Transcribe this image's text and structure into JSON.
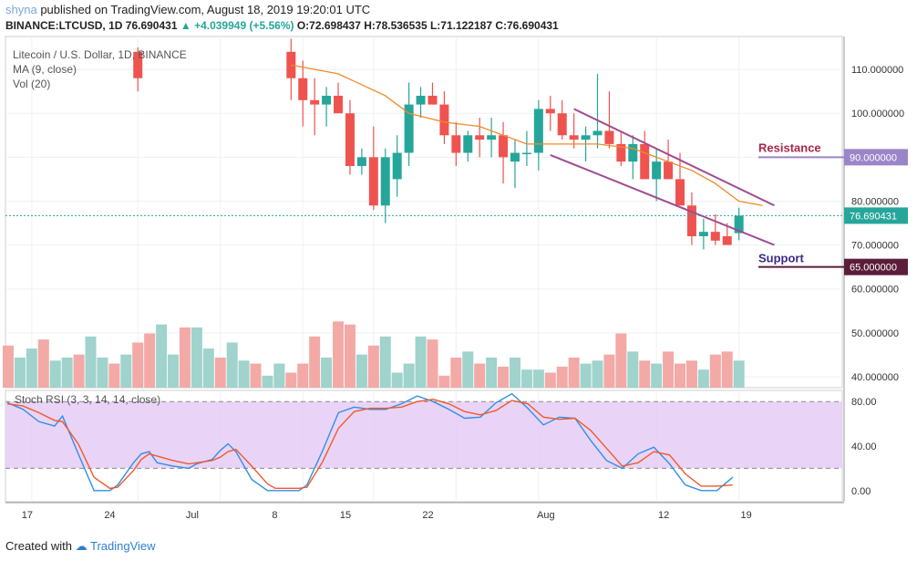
{
  "header": {
    "user": "shyna",
    "published": "published on TradingView.com, August 18, 2019 19:20:01 UTC",
    "symbol_line": "BINANCE:LTCUSD, 1D 76.690431",
    "change": "▲ +4.039949 (+5.56%)",
    "ohlc": "O:72.698437 H:78.536535 L:71.122187 C:76.690431"
  },
  "legend": {
    "title": "Litecoin / U.S. Dollar, 1D, BINANCE",
    "ma": "MA (9, close)",
    "vol": "Vol (20)",
    "stoch": "Stoch RSI (3, 3, 14, 14, close)"
  },
  "footer": {
    "created": "Created with",
    "brand": "TradingView"
  },
  "annotations": {
    "resistance": "Resistance",
    "support": "Support"
  },
  "colors": {
    "up": "#26a69a",
    "down": "#ef5350",
    "ma": "#ef8a2a",
    "channel": "#a04c8f",
    "resistance": "#9b85c9",
    "support": "#5b1d3a",
    "stoch_k": "#2f8fe6",
    "stoch_d": "#ef5a2a",
    "stoch_band": "#e3c9f5"
  },
  "chart_data": {
    "type": "candlestick",
    "symbol": "BINANCE:LTCUSD",
    "price_axis": {
      "ylim": [
        37.5,
        117.5
      ],
      "ticks": [
        "110.000000",
        "100.000000",
        "90.000000",
        "80.000000",
        "70.000000",
        "60.000000",
        "50.000000",
        "40.000000"
      ]
    },
    "x_tick_labels": [
      "17",
      "24",
      "Jul",
      "8",
      "15",
      "22",
      "Aug",
      "12",
      "19"
    ],
    "price_labels": {
      "last": "76.690431",
      "resistance": "90.000000",
      "support": "65.000000"
    },
    "levels": {
      "resistance": 90,
      "support": 65,
      "last": 76.69
    },
    "candles": [
      [
        null,
        null,
        null,
        null
      ],
      [
        null,
        null,
        null,
        null
      ],
      [
        null,
        null,
        null,
        null
      ],
      [
        null,
        null,
        null,
        null
      ],
      [
        null,
        null,
        null,
        null
      ],
      [
        null,
        null,
        null,
        null
      ],
      [
        null,
        null,
        null,
        null
      ],
      [
        null,
        null,
        null,
        null
      ],
      [
        null,
        null,
        null,
        null
      ],
      [
        null,
        null,
        null,
        null
      ],
      [
        null,
        null,
        null,
        null
      ],
      [
        114,
        115,
        105,
        108
      ],
      [
        null,
        null,
        null,
        null
      ],
      [
        null,
        null,
        null,
        null
      ],
      [
        null,
        null,
        null,
        null
      ],
      [
        null,
        null,
        null,
        null
      ],
      [
        null,
        null,
        null,
        null
      ],
      [
        null,
        null,
        null,
        null
      ],
      [
        null,
        null,
        null,
        null
      ],
      [
        null,
        null,
        null,
        null
      ],
      [
        null,
        null,
        null,
        null
      ],
      [
        null,
        null,
        null,
        null
      ],
      [
        null,
        null,
        null,
        null
      ],
      [
        null,
        null,
        null,
        null
      ],
      [
        114,
        117,
        103,
        108
      ],
      [
        108,
        112,
        97,
        103
      ],
      [
        103,
        108,
        95,
        102
      ],
      [
        102,
        106,
        97,
        104
      ],
      [
        104,
        107,
        101,
        100
      ],
      [
        100,
        103,
        86,
        88
      ],
      [
        88,
        92,
        86,
        90
      ],
      [
        90,
        97,
        78,
        79
      ],
      [
        79,
        92,
        75,
        90
      ],
      [
        85,
        95,
        81,
        91
      ],
      [
        91,
        107,
        88,
        102
      ],
      [
        102,
        106,
        99,
        104
      ],
      [
        104,
        107,
        102,
        102
      ],
      [
        102,
        105,
        93,
        95
      ],
      [
        95,
        98,
        88,
        91
      ],
      [
        91,
        96,
        89,
        95
      ],
      [
        95,
        99,
        90,
        94
      ],
      [
        94,
        99,
        90,
        95
      ],
      [
        95,
        98,
        84,
        90
      ],
      [
        89,
        94,
        83,
        91
      ],
      [
        91,
        96,
        88,
        91
      ],
      [
        91,
        103,
        87,
        101
      ],
      [
        101,
        104,
        96,
        100
      ],
      [
        100,
        103,
        94,
        95
      ],
      [
        95,
        100,
        92,
        94
      ],
      [
        94,
        97,
        89,
        95
      ],
      [
        95,
        109,
        92,
        96
      ],
      [
        96,
        105,
        92,
        93
      ],
      [
        93,
        96,
        88,
        89
      ],
      [
        89,
        95,
        85,
        93
      ],
      [
        93,
        96,
        87,
        85
      ],
      [
        85,
        92,
        80,
        89
      ],
      [
        89,
        94,
        85,
        85
      ],
      [
        85,
        91,
        82,
        79
      ],
      [
        79,
        82,
        70,
        72
      ],
      [
        72,
        76,
        69,
        73
      ],
      [
        73,
        77,
        70,
        71
      ],
      [
        72,
        75,
        70,
        70
      ],
      [
        72.7,
        78.5,
        71.1,
        76.7
      ]
    ],
    "ma9": [
      [
        24,
        111
      ],
      [
        28,
        109
      ],
      [
        32,
        104
      ],
      [
        34,
        100
      ],
      [
        37,
        98
      ],
      [
        40,
        97
      ],
      [
        44,
        93
      ],
      [
        47,
        93
      ],
      [
        50,
        93
      ],
      [
        53,
        92
      ],
      [
        55,
        90
      ],
      [
        58,
        87
      ],
      [
        60,
        84
      ],
      [
        62,
        80
      ],
      [
        64,
        79
      ]
    ],
    "channel": {
      "upper": [
        [
          48,
          101
        ],
        [
          65,
          79
        ]
      ],
      "lower": [
        [
          46,
          90.5
        ],
        [
          65,
          70
        ]
      ]
    },
    "volume": {
      "scale_max": 30
    },
    "stoch_rsi": {
      "ylim": [
        -10,
        90
      ],
      "ticks": [
        "80.00",
        "40.00",
        "0.00"
      ],
      "bands": [
        80,
        20
      ]
    }
  }
}
